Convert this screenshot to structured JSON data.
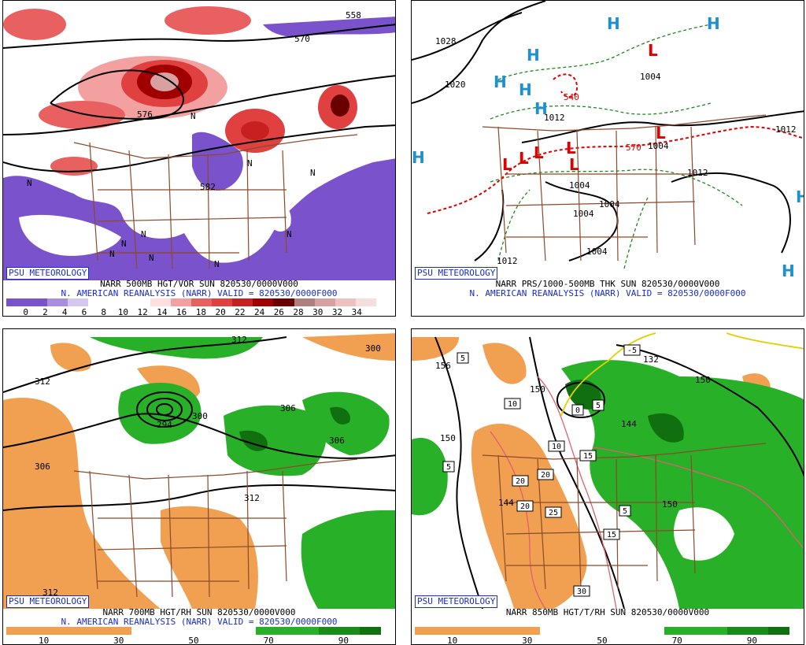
{
  "panels": [
    {
      "id": "vorticity",
      "credit": "PSU METEOROLOGY",
      "caption_line1": "NARR 500MB HGT/VOR SUN 820530/0000V000",
      "caption_line2": "N. AMERICAN REANALYSIS (NARR) VALID = 820530/0000F000",
      "scale_labels": [
        "0",
        "2",
        "4",
        "6",
        "8",
        "10",
        "12",
        "14",
        "16",
        "18",
        "20",
        "22",
        "24",
        "26",
        "28",
        "30",
        "32",
        "34"
      ],
      "scale_colors": [
        "#7a52cc",
        "#7a52cc",
        "#a98ee0",
        "#d5c8f0",
        "#ffffff",
        "#ffffff",
        "#ffffff",
        "#ffe0e0",
        "#f2a0a0",
        "#e86060",
        "#e04040",
        "#c82020",
        "#a00000",
        "#6a0000",
        "#b08080",
        "#d8a0a0",
        "#f0c0c0",
        "#f6dede"
      ],
      "contour_labels": [
        "570",
        "576",
        "582",
        "558",
        "N",
        "N",
        "N",
        "N",
        "N",
        "N",
        "N",
        "N",
        "N",
        "N"
      ]
    },
    {
      "id": "thickness",
      "credit": "PSU METEOROLOGY",
      "caption_line1": "NARR PRS/1000-500MB THK SUN 820530/0000V000",
      "caption_line2": "N. AMERICAN REANALYSIS (NARR) VALID = 820530/0000F000",
      "contour_labels": [
        "1028",
        "1020",
        "1012",
        "1004",
        "1004",
        "1004",
        "1004",
        "1004",
        "1012",
        "1012",
        "1012",
        "1004",
        "540",
        "570"
      ],
      "high_symbols": [
        "H",
        "H",
        "H",
        "H",
        "H",
        "H",
        "H",
        "H",
        "H"
      ],
      "low_symbols": [
        "L",
        "L",
        "L",
        "L",
        "L",
        "L",
        "L"
      ]
    },
    {
      "id": "rh700",
      "credit": "PSU METEOROLOGY",
      "caption_line1": "NARR 700MB HGT/RH SUN 820530/0000V000",
      "caption_line2": "N. AMERICAN REANALYSIS (NARR) VALID = 820530/0000F000",
      "scale_labels": [
        "10",
        "30",
        "50",
        "70",
        "90"
      ],
      "scale_colors": [
        "#f0a050",
        "#f0a050",
        "#f0a050",
        "#f0a050",
        "#f0a050",
        "#f0a050",
        "#ffffff",
        "#ffffff",
        "#ffffff",
        "#ffffff",
        "#ffffff",
        "#ffffff",
        "#28b028",
        "#28b028",
        "#28b028",
        "#1a8a1a",
        "#1a8a1a",
        "#107010"
      ],
      "contour_labels": [
        "312",
        "306",
        "300",
        "294",
        "306",
        "306",
        "312",
        "312",
        "300",
        "312"
      ]
    },
    {
      "id": "rh850",
      "credit": "PSU METEOROLOGY",
      "caption_line1": "NARR 850MB HGT/T/RH SUN 820530/0000V000",
      "caption_line2": "N. AMERICAN REANALYSIS (NARR) VALID = 820530/0000F000",
      "scale_labels": [
        "10",
        "30",
        "50",
        "70",
        "90"
      ],
      "scale_colors": [
        "#f0a050",
        "#f0a050",
        "#f0a050",
        "#f0a050",
        "#f0a050",
        "#f0a050",
        "#ffffff",
        "#ffffff",
        "#ffffff",
        "#ffffff",
        "#ffffff",
        "#ffffff",
        "#28b028",
        "#28b028",
        "#28b028",
        "#1a8a1a",
        "#1a8a1a",
        "#107010"
      ],
      "contour_labels": [
        "156",
        "150",
        "150",
        "144",
        "144",
        "150",
        "132",
        "150"
      ],
      "temp_labels": [
        "5",
        "-5",
        "5",
        "0",
        "5",
        "10",
        "10",
        "15",
        "15",
        "20",
        "20",
        "20",
        "25",
        "30",
        "5"
      ]
    }
  ]
}
